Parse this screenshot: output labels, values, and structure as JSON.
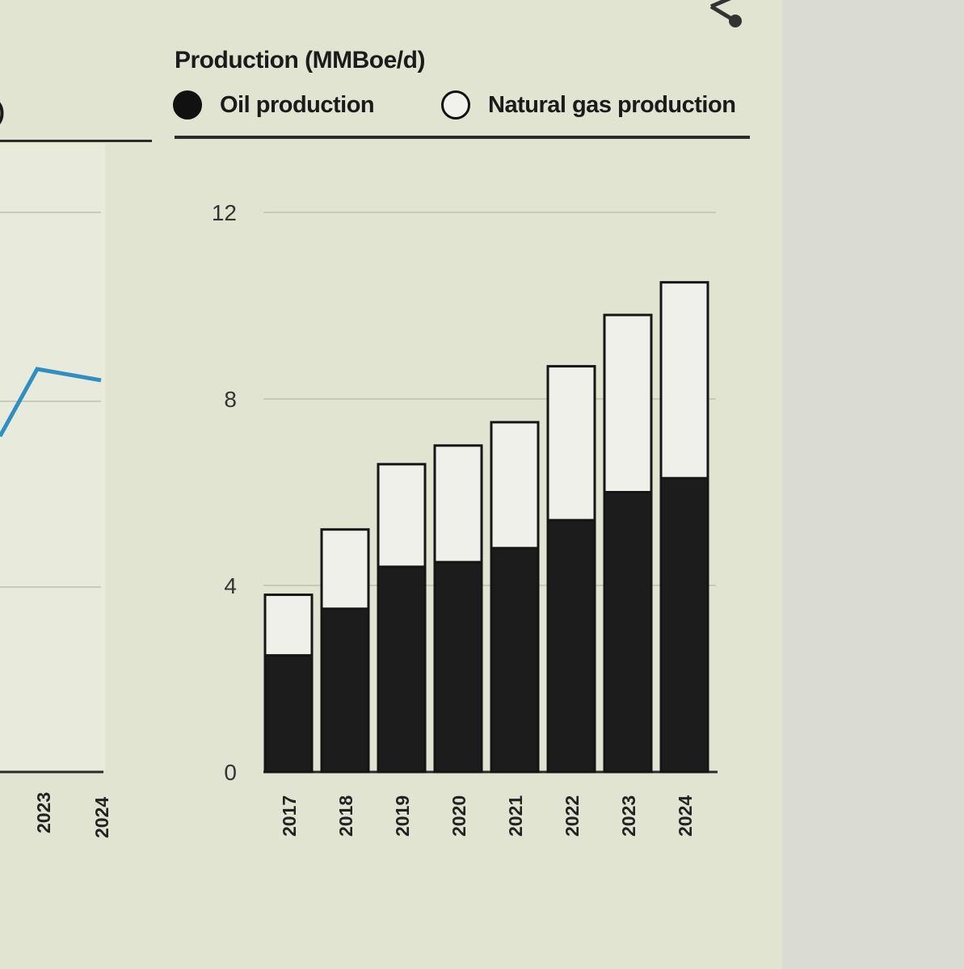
{
  "left_chart": {
    "title_fragment": ")",
    "tick_labels": [
      "2023",
      "2024"
    ],
    "line_color": "#2f8ec2",
    "line_values": [
      0.6,
      0.72,
      0.7
    ]
  },
  "chart_data": {
    "type": "bar",
    "stacked": true,
    "title": "Production (MMBoe/d)",
    "categories": [
      "2017",
      "2018",
      "2019",
      "2020",
      "2021",
      "2022",
      "2023",
      "2024"
    ],
    "series": [
      {
        "name": "Oil production",
        "color": "#1c1c1c",
        "values": [
          2.5,
          3.5,
          4.4,
          4.5,
          4.8,
          5.4,
          6.0,
          6.3
        ]
      },
      {
        "name": "Natural gas production",
        "color": "#f0f0ea",
        "values": [
          1.3,
          1.7,
          2.2,
          2.5,
          2.7,
          3.3,
          3.8,
          4.2
        ]
      }
    ],
    "ylim": [
      0,
      12
    ],
    "yticks": [
      0,
      4,
      8,
      12
    ],
    "grid": true,
    "legend": "top-left"
  },
  "icons": {
    "share": "share-icon"
  }
}
